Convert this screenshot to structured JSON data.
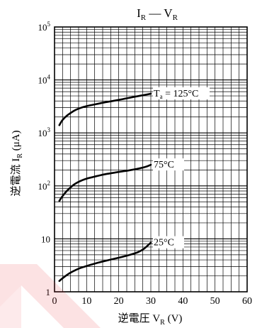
{
  "chart_data": {
    "type": "line",
    "title": {
      "main_a": "I",
      "main_a_sub": "R",
      "dash": " — ",
      "main_b": "V",
      "main_b_sub": "R"
    },
    "ylabel": {
      "main": "逆電流  I",
      "sub": "R",
      "unit": " (μA)"
    },
    "xlabel": {
      "main": "逆電圧  V",
      "sub": "R",
      "unit": "  (V)"
    },
    "x_ticks": [
      "0",
      "10",
      "20",
      "30",
      "40",
      "50",
      "60"
    ],
    "y_ticks": [
      {
        "value": 1,
        "label": "1",
        "sup": ""
      },
      {
        "value": 10,
        "label": "10",
        "sup": ""
      },
      {
        "value": 100,
        "label": "10",
        "sup": "2"
      },
      {
        "value": 1000,
        "label": "10",
        "sup": "3"
      },
      {
        "value": 10000,
        "label": "10",
        "sup": "4"
      },
      {
        "value": 100000,
        "label": "10",
        "sup": "5"
      }
    ],
    "xlim": [
      0,
      60
    ],
    "ylim": [
      1,
      100000
    ],
    "y_scale": "log",
    "grid": true,
    "series": [
      {
        "label_parts": [
          "T",
          "a",
          " = 125°C"
        ],
        "x": [
          1.5,
          2.5,
          4,
          6,
          8,
          10,
          13,
          16,
          20,
          24,
          28,
          30
        ],
        "y": [
          1400,
          1750,
          2150,
          2600,
          2950,
          3200,
          3500,
          3800,
          4200,
          4700,
          5200,
          5500
        ]
      },
      {
        "label_parts": [
          "75°C"
        ],
        "x": [
          1.5,
          2.5,
          4,
          6,
          8,
          10,
          13,
          16,
          20,
          24,
          28,
          30
        ],
        "y": [
          52,
          64,
          82,
          105,
          123,
          137,
          152,
          167,
          183,
          200,
          225,
          250
        ]
      },
      {
        "label_parts": [
          "25°C"
        ],
        "x": [
          1.5,
          3,
          5,
          8,
          11,
          14,
          17,
          20,
          23,
          26,
          28,
          30
        ],
        "y": [
          1.6,
          1.9,
          2.3,
          2.8,
          3.2,
          3.6,
          4.0,
          4.4,
          4.9,
          5.6,
          6.6,
          8.5
        ]
      }
    ]
  }
}
